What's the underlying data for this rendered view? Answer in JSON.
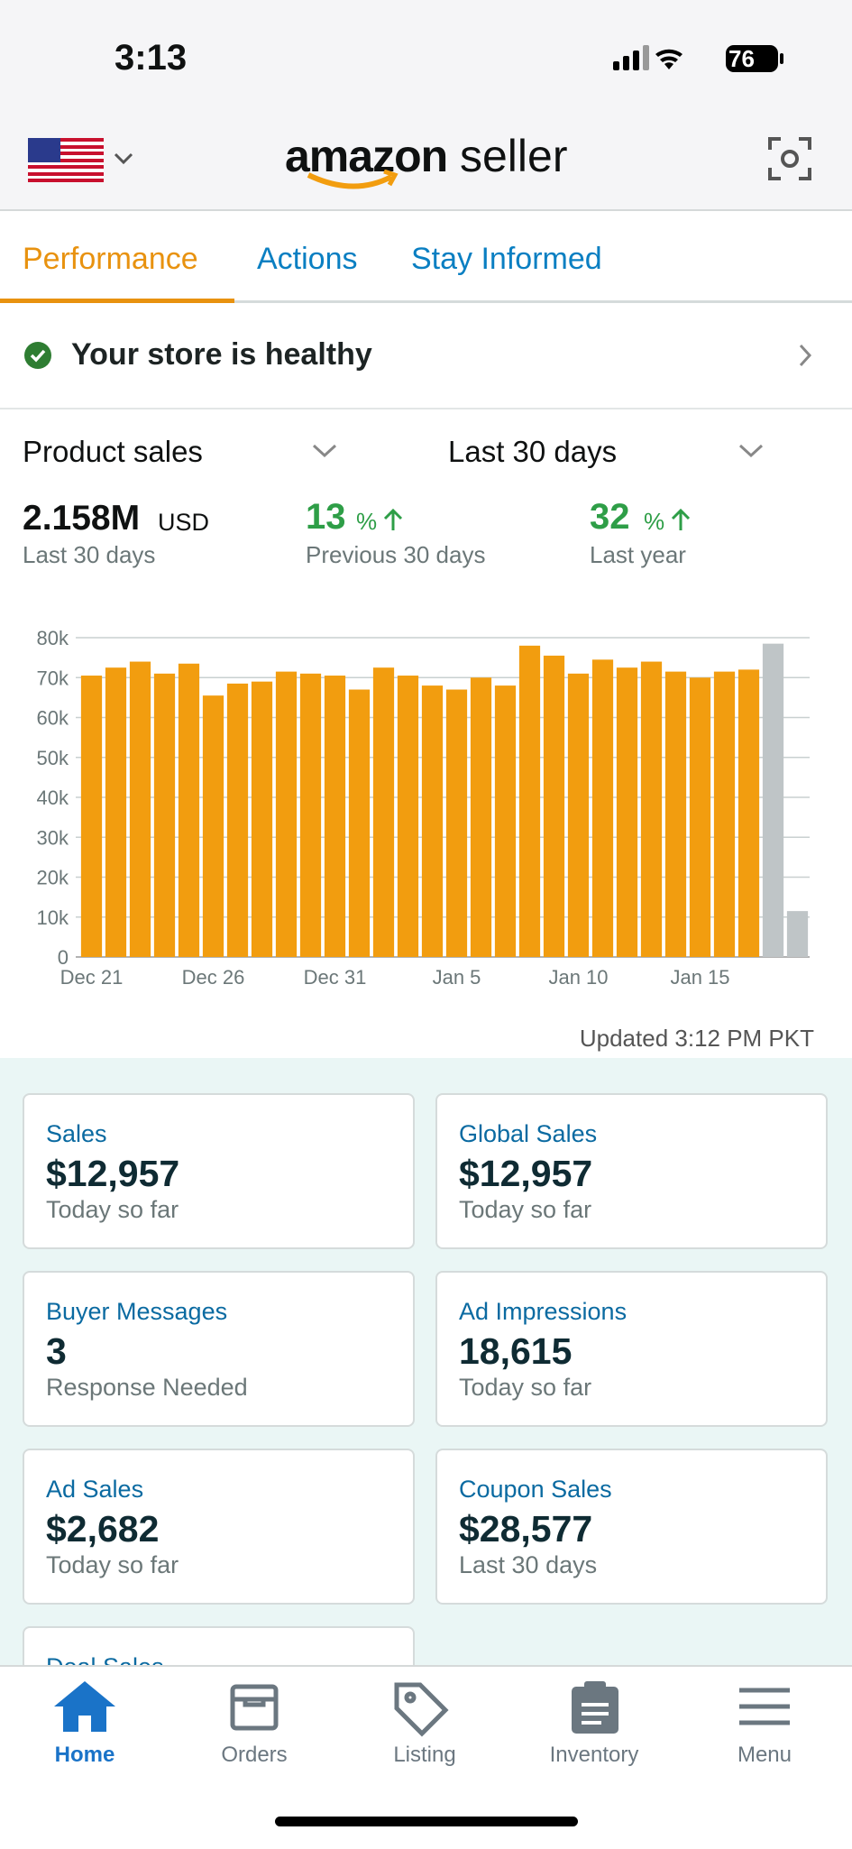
{
  "status_bar": {
    "time": "3:13",
    "battery": "76"
  },
  "header": {
    "logo_brand": "amazon",
    "logo_suffix": "seller"
  },
  "tabs": [
    "Performance",
    "Actions",
    "Stay Informed"
  ],
  "health": "Your store is healthy",
  "filters": [
    "Product sales",
    "Last 30 days"
  ],
  "metrics": [
    {
      "value": "2.158M",
      "unit": "USD",
      "caption": "Last 30 days"
    },
    {
      "value": "13",
      "unit": "%",
      "caption": "Previous 30 days"
    },
    {
      "value": "32",
      "unit": "%",
      "caption": "Last year"
    }
  ],
  "chart_data": {
    "type": "bar",
    "categories": [
      "Dec 21",
      null,
      null,
      null,
      null,
      "Dec 26",
      null,
      null,
      null,
      null,
      "Dec 31",
      null,
      null,
      null,
      null,
      "Jan 5",
      null,
      null,
      null,
      null,
      "Jan 10",
      null,
      null,
      null,
      null,
      "Jan 15",
      null,
      null,
      null,
      null
    ],
    "values": [
      70500,
      72500,
      74000,
      71000,
      73500,
      65500,
      68500,
      69000,
      71500,
      71000,
      70500,
      67000,
      72500,
      70500,
      68000,
      67000,
      70000,
      68000,
      78000,
      75500,
      71000,
      74500,
      72500,
      74000,
      71500,
      70000,
      71500,
      72000,
      78500,
      11500
    ],
    "colors": [
      "#f29d0f",
      "#f29d0f",
      "#f29d0f",
      "#f29d0f",
      "#f29d0f",
      "#f29d0f",
      "#f29d0f",
      "#f29d0f",
      "#f29d0f",
      "#f29d0f",
      "#f29d0f",
      "#f29d0f",
      "#f29d0f",
      "#f29d0f",
      "#f29d0f",
      "#f29d0f",
      "#f29d0f",
      "#f29d0f",
      "#f29d0f",
      "#f29d0f",
      "#f29d0f",
      "#f29d0f",
      "#f29d0f",
      "#f29d0f",
      "#f29d0f",
      "#f29d0f",
      "#f29d0f",
      "#f29d0f",
      "#bfc5c7",
      "#bfc5c7"
    ],
    "ylim": [
      0,
      80000
    ],
    "yticks": [
      0,
      {
        "value": 10000,
        "label": "10k"
      },
      {
        "value": 20000,
        "label": "20k"
      },
      {
        "value": 30000,
        "label": "30k"
      },
      {
        "value": 40000,
        "label": "40k"
      },
      {
        "value": 50000,
        "label": "50k"
      },
      {
        "value": 60000,
        "label": "60k"
      },
      {
        "value": 70000,
        "label": "70k"
      },
      {
        "value": 80000,
        "label": "80k"
      }
    ],
    "grid": true
  },
  "updated": "Updated 3:12 PM PKT",
  "cards": [
    {
      "title": "Sales",
      "value": "$12,957",
      "caption": "Today so far"
    },
    {
      "title": "Global Sales",
      "value": "$12,957",
      "caption": "Today so far"
    },
    {
      "title": "Buyer Messages",
      "value": "3",
      "caption": "Response Needed"
    },
    {
      "title": "Ad Impressions",
      "value": "18,615",
      "caption": "Today so far"
    },
    {
      "title": "Ad Sales",
      "value": "$2,682",
      "caption": "Today so far"
    },
    {
      "title": "Coupon Sales",
      "value": "$28,577",
      "caption": "Last 30 days"
    },
    {
      "title": "Deal Sales"
    }
  ],
  "nav": [
    "Home",
    "Orders",
    "Listing",
    "Inventory",
    "Menu"
  ]
}
